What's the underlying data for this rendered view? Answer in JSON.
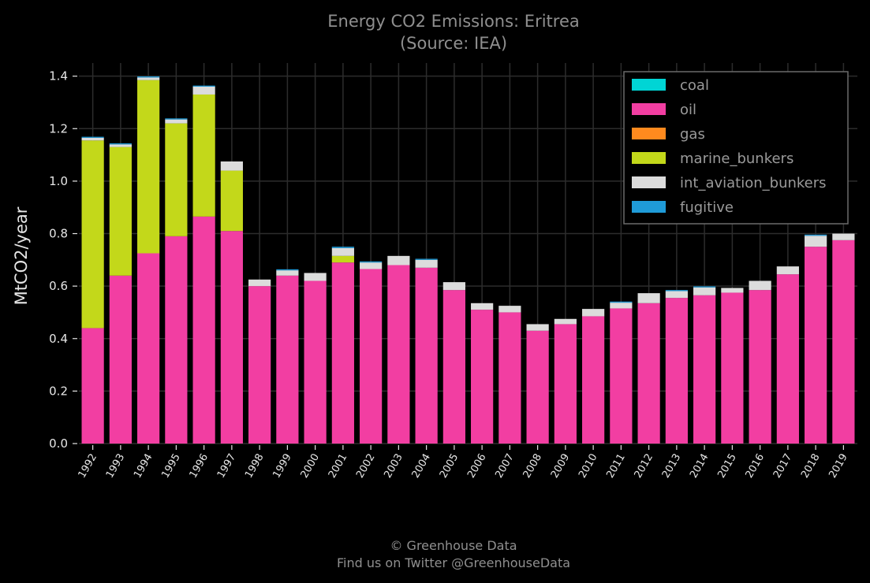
{
  "chart_data": {
    "type": "bar",
    "stacked": true,
    "title": "Energy CO2 Emissions: Eritrea",
    "subtitle": "(Source: IEA)",
    "xlabel": "",
    "ylabel": "MtCO2/year",
    "ylim": [
      0,
      1.45
    ],
    "yticks": [
      "0.0",
      "0.2",
      "0.4",
      "0.6",
      "0.8",
      "1.0",
      "1.2",
      "1.4"
    ],
    "grid": true,
    "legend_position": "top-right",
    "categories": [
      "1992",
      "1993",
      "1994",
      "1995",
      "1996",
      "1997",
      "1998",
      "1999",
      "2000",
      "2001",
      "2002",
      "2003",
      "2004",
      "2005",
      "2006",
      "2007",
      "2008",
      "2009",
      "2010",
      "2011",
      "2012",
      "2013",
      "2014",
      "2015",
      "2016",
      "2017",
      "2018",
      "2019"
    ],
    "series": [
      {
        "name": "coal",
        "color": "#00d5d5",
        "values": [
          0,
          0,
          0,
          0,
          0,
          0,
          0,
          0,
          0,
          0,
          0,
          0,
          0,
          0,
          0,
          0,
          0,
          0,
          0,
          0,
          0,
          0,
          0,
          0,
          0,
          0,
          0,
          0
        ]
      },
      {
        "name": "oil",
        "color": "#f23ea2",
        "values": [
          0.44,
          0.64,
          0.725,
          0.79,
          0.865,
          0.81,
          0.6,
          0.64,
          0.62,
          0.69,
          0.665,
          0.68,
          0.67,
          0.585,
          0.51,
          0.5,
          0.43,
          0.455,
          0.485,
          0.515,
          0.535,
          0.555,
          0.565,
          0.575,
          0.585,
          0.645,
          0.75,
          0.775
        ]
      },
      {
        "name": "gas",
        "color": "#ff8a1e",
        "values": [
          0,
          0,
          0,
          0,
          0,
          0,
          0,
          0,
          0,
          0,
          0,
          0,
          0,
          0,
          0,
          0,
          0,
          0,
          0,
          0,
          0,
          0,
          0,
          0,
          0,
          0,
          0,
          0
        ]
      },
      {
        "name": "marine_bunkers",
        "color": "#c3d81a",
        "values": [
          0.715,
          0.49,
          0.66,
          0.43,
          0.465,
          0.23,
          0,
          0,
          0,
          0.025,
          0,
          0,
          0,
          0,
          0,
          0,
          0,
          0,
          0,
          0,
          0,
          0,
          0,
          0,
          0,
          0,
          0,
          0
        ]
      },
      {
        "name": "int_aviation_bunkers",
        "color": "#dcdcdc",
        "values": [
          0.01,
          0.01,
          0.01,
          0.015,
          0.03,
          0.035,
          0.025,
          0.02,
          0.03,
          0.03,
          0.025,
          0.035,
          0.03,
          0.03,
          0.025,
          0.025,
          0.025,
          0.02,
          0.028,
          0.022,
          0.038,
          0.026,
          0.03,
          0.018,
          0.035,
          0.03,
          0.042,
          0.025
        ]
      },
      {
        "name": "fugitive",
        "color": "#1f9bd8",
        "values": [
          0.004,
          0.004,
          0.004,
          0.004,
          0.004,
          0,
          0,
          0.004,
          0,
          0.005,
          0.004,
          0,
          0.004,
          0,
          0,
          0,
          0,
          0,
          0,
          0.004,
          0,
          0.004,
          0.004,
          0,
          0,
          0,
          0.004,
          0
        ]
      }
    ]
  },
  "footer": {
    "line1": "© Greenhouse Data",
    "line2": "Find us on Twitter @GreenhouseData"
  }
}
